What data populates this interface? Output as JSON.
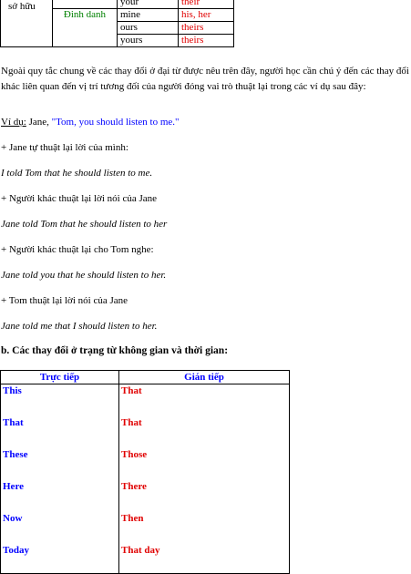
{
  "pronoun_table": {
    "row_label": "sở hữu",
    "group_label": "Đinh danh",
    "rows": [
      {
        "direct": "your",
        "indirect": "their"
      },
      {
        "direct": "mine",
        "indirect": "his, her"
      },
      {
        "direct": "ours",
        "indirect": "theirs"
      },
      {
        "direct": "yours",
        "indirect": "theirs"
      }
    ]
  },
  "intro_paragraph": "Ngoài quy tắc chung về các thay đổi ở đại từ được nêu trên đây, người học cần chú ý đến các thay đổi khác liên quan đến vị trí tương đối của người đóng vai trò thuật lại trong các ví dụ sau đây:",
  "example": {
    "label": "Ví dụ:",
    "speaker": " Jane, ",
    "quote": "\"Tom, you should listen to me.\""
  },
  "cases": [
    {
      "title": "+ Jane tự thuật lại lời của mình:",
      "sentence": "I told Tom that he should listen to me."
    },
    {
      "title": "+ Người khác thuật lại lời nói của Jane",
      "sentence": "Jane told Tom that he should listen to her"
    },
    {
      "title": "+ Người khác thuật lại cho Tom nghe:",
      "sentence": "Jane told you that he should listen to her."
    },
    {
      "title": "+ Tom thuật lại lời nói của Jane",
      "sentence": "Jane told me that I should listen to her."
    }
  ],
  "section_b_heading": "b. Các thay đổi ở trạng từ không gian và thời gian:",
  "adverb_table": {
    "headers": [
      "Trực tiếp",
      "Gián tiếp"
    ],
    "direct": [
      "This",
      "That",
      "These",
      "Here",
      "Now",
      "Today"
    ],
    "indirect": [
      "That",
      "That",
      "Those",
      "There",
      "Then",
      "That day"
    ]
  }
}
